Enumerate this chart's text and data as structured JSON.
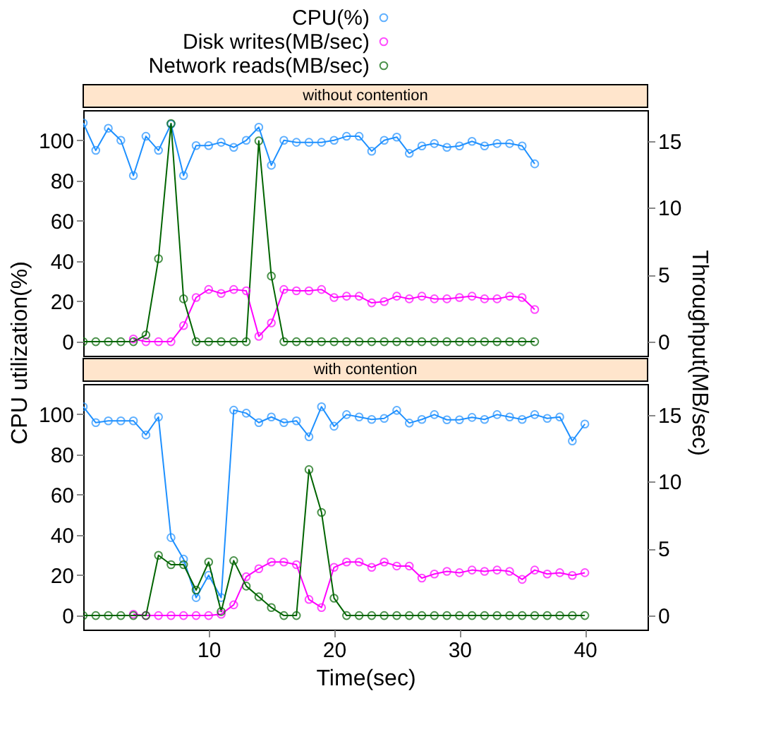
{
  "chart_data": [
    {
      "type": "line",
      "title": "without contention",
      "ylabel": "CPU utilization(%)",
      "y2label": "Throughput(MB/sec)",
      "legend": "top",
      "marker": "circle",
      "line_style": "solid",
      "grid": false,
      "tick_labels": "y",
      "x": [
        0,
        1,
        2,
        3,
        4,
        5,
        6,
        7,
        8,
        9,
        10,
        11,
        12,
        13,
        14,
        15,
        16,
        17,
        18,
        19,
        20,
        21,
        22,
        23,
        24,
        25,
        26,
        27,
        28,
        29,
        30,
        31,
        32,
        33,
        34,
        35,
        36
      ],
      "xlim": [
        0,
        45
      ],
      "ylim": [
        -7,
        115
      ],
      "yticks": [
        0,
        20,
        40,
        60,
        80,
        100
      ],
      "y2lim": [
        -1.05,
        17.3
      ],
      "y2ticks": [
        0,
        5,
        10,
        15
      ],
      "series": [
        {
          "name": "CPU(%)",
          "color": "#1e90ff",
          "values": [
            108.6,
            95,
            106,
            100,
            82.5,
            102,
            95,
            108,
            82.5,
            97.4,
            97.4,
            99,
            96.5,
            100,
            106.5,
            87.6,
            100,
            99,
            99,
            99,
            100,
            102,
            102,
            94.6,
            100,
            101.6,
            93.5,
            97.2,
            98.4,
            96.5,
            97.2,
            99.5,
            97.2,
            98.4,
            98.4,
            97.2,
            88.3
          ]
        },
        {
          "name": "Disk writes(MB/sec)",
          "color": "#ff00ff",
          "axis": "y2",
          "values": [
            null,
            null,
            null,
            null,
            0.2,
            0,
            0,
            0,
            1.2,
            3.3,
            3.9,
            3.6,
            3.9,
            3.8,
            0.4,
            1.4,
            3.9,
            3.8,
            3.8,
            3.9,
            3.3,
            3.4,
            3.4,
            2.9,
            3.0,
            3.4,
            3.2,
            3.4,
            3.2,
            3.2,
            3.3,
            3.4,
            3.2,
            3.2,
            3.4,
            3.3,
            2.4
          ]
        },
        {
          "name": "Network reads(MB/sec)",
          "color": "#006400",
          "axis": "y2",
          "values": [
            0,
            0,
            0,
            0,
            0,
            0.5,
            6.2,
            16.3,
            3.2,
            0,
            0,
            0,
            0,
            0,
            15.0,
            4.9,
            0,
            0,
            0,
            0,
            0,
            0,
            0,
            0,
            0,
            0,
            0,
            0,
            0,
            0,
            0,
            0,
            0,
            0,
            0,
            0,
            0
          ]
        }
      ]
    },
    {
      "type": "line",
      "title": "with contention",
      "xlabel": "Time(sec)",
      "marker": "circle",
      "line_style": "solid",
      "grid": false,
      "x": [
        0,
        1,
        2,
        3,
        4,
        5,
        6,
        7,
        8,
        9,
        10,
        11,
        12,
        13,
        14,
        15,
        16,
        17,
        18,
        19,
        20,
        21,
        22,
        23,
        24,
        25,
        26,
        27,
        28,
        29,
        30,
        31,
        32,
        33,
        34,
        35,
        36,
        37,
        38,
        39,
        40
      ],
      "xlim": [
        0,
        45
      ],
      "xticks": [
        10,
        20,
        30,
        40
      ],
      "ylim": [
        -7,
        115
      ],
      "yticks": [
        0,
        20,
        40,
        60,
        80,
        100
      ],
      "y2lim": [
        -1.05,
        17.3
      ],
      "y2ticks": [
        0,
        5,
        10,
        15
      ],
      "series": [
        {
          "color": "#1e90ff",
          "values": [
            103.7,
            95.8,
            96.7,
            96.7,
            96.7,
            89.7,
            98.6,
            38.7,
            28,
            8.9,
            20,
            8.9,
            102,
            100.5,
            95.8,
            98.6,
            95.8,
            96.7,
            88.8,
            103.7,
            94,
            99.8,
            98.6,
            97.4,
            97.9,
            101.9,
            95.6,
            97.4,
            99.8,
            97.2,
            97.2,
            98.4,
            97.4,
            99.8,
            98.6,
            97.4,
            99.8,
            97.9,
            98.6,
            86.7,
            95.1
          ]
        },
        {
          "color": "#ff00ff",
          "axis": "y2",
          "values": [
            null,
            null,
            null,
            null,
            0.1,
            0,
            0,
            0,
            0,
            0,
            0,
            0.1,
            0.8,
            2.9,
            3.5,
            4.0,
            4.0,
            3.8,
            1.2,
            0.6,
            3.6,
            4.0,
            4.0,
            3.6,
            4.0,
            3.7,
            3.7,
            2.8,
            3.1,
            3.3,
            3.2,
            3.4,
            3.3,
            3.4,
            3.3,
            2.7,
            3.4,
            3.1,
            3.2,
            3.0,
            3.2
          ]
        },
        {
          "color": "#006400",
          "axis": "y2",
          "values": [
            0,
            0,
            0,
            0,
            0,
            0,
            4.5,
            3.8,
            3.8,
            1.9,
            4.0,
            0.3,
            4.1,
            2.2,
            1.4,
            0.6,
            0,
            0,
            10.9,
            7.7,
            1.3,
            0,
            0,
            0,
            0,
            0,
            0,
            0,
            0,
            0,
            0,
            0,
            0,
            0,
            0,
            0,
            0,
            0,
            0,
            0,
            0
          ]
        }
      ]
    }
  ]
}
